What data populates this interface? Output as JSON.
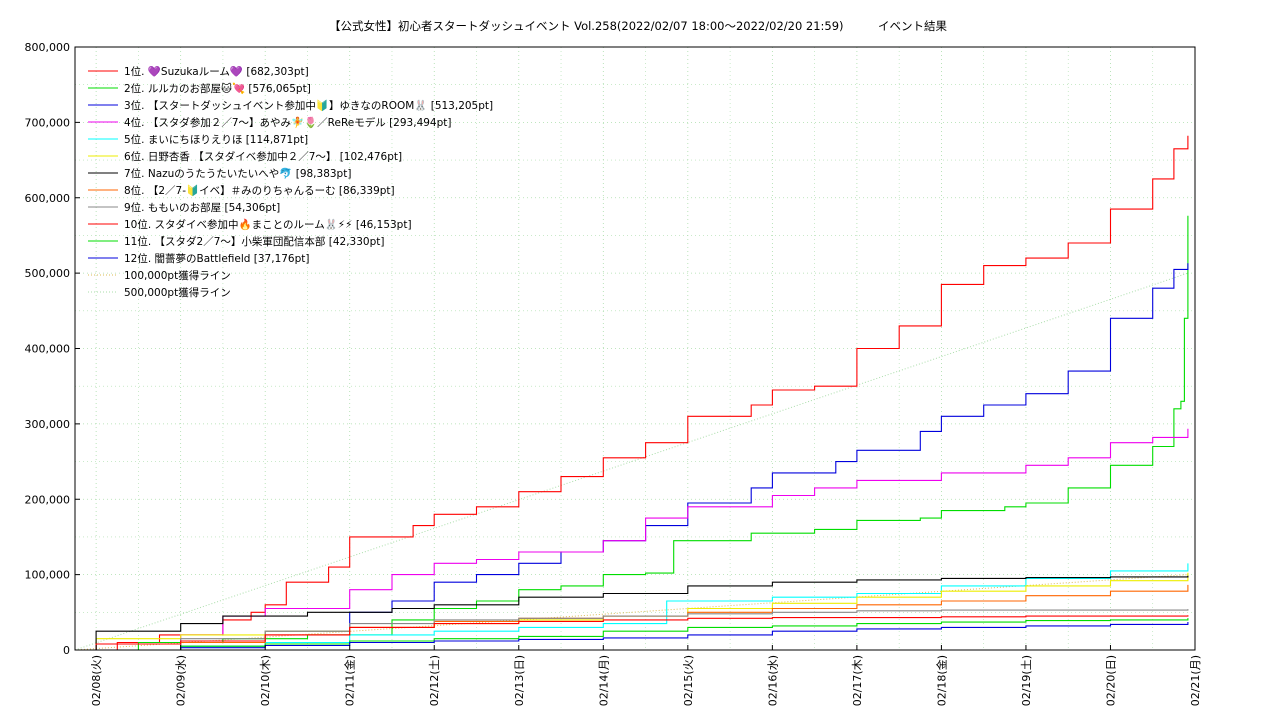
{
  "chart_data": {
    "type": "line",
    "title": "【公式女性】初心者スタートダッシュイベント Vol.258(2022/02/07 18:00～2022/02/20 21:59)　　　イベント結果",
    "xlabel": "",
    "ylabel": "",
    "x_tick_labels": [
      "02/08(火)",
      "02/09(水)",
      "02/10(木)",
      "02/11(金)",
      "02/12(土)",
      "02/13(日)",
      "02/14(月)",
      "02/15(火)",
      "02/16(水)",
      "02/17(木)",
      "02/18(金)",
      "02/19(土)",
      "02/20(日)",
      "02/21(月)"
    ],
    "y_tick_labels": [
      "0",
      "100,000",
      "200,000",
      "300,000",
      "400,000",
      "500,000",
      "600,000",
      "700,000",
      "800,000"
    ],
    "ylim": [
      0,
      800000
    ],
    "xlim": [
      "2022-02-07 18:00",
      "2022-02-21 00:00"
    ],
    "grid": true,
    "legend_position": "top-left",
    "series": [
      {
        "name": "1位. 💜Suzukaルーム💜 [682,303pt]",
        "color": "#ff0000",
        "points": [
          [
            "2022-02-07 18:00",
            0
          ],
          [
            "2022-02-08 06:00",
            10000
          ],
          [
            "2022-02-08 18:00",
            20000
          ],
          [
            "2022-02-09 12:00",
            40000
          ],
          [
            "2022-02-09 20:00",
            50000
          ],
          [
            "2022-02-10 00:00",
            60000
          ],
          [
            "2022-02-10 06:00",
            90000
          ],
          [
            "2022-02-10 18:00",
            110000
          ],
          [
            "2022-02-11 00:00",
            150000
          ],
          [
            "2022-02-11 18:00",
            165000
          ],
          [
            "2022-02-12 00:00",
            180000
          ],
          [
            "2022-02-12 12:00",
            190000
          ],
          [
            "2022-02-13 00:00",
            210000
          ],
          [
            "2022-02-13 12:00",
            230000
          ],
          [
            "2022-02-14 00:00",
            255000
          ],
          [
            "2022-02-14 12:00",
            275000
          ],
          [
            "2022-02-15 00:00",
            310000
          ],
          [
            "2022-02-15 18:00",
            325000
          ],
          [
            "2022-02-16 00:00",
            345000
          ],
          [
            "2022-02-16 12:00",
            350000
          ],
          [
            "2022-02-17 00:00",
            400000
          ],
          [
            "2022-02-17 12:00",
            430000
          ],
          [
            "2022-02-18 00:00",
            485000
          ],
          [
            "2022-02-18 12:00",
            510000
          ],
          [
            "2022-02-19 00:00",
            520000
          ],
          [
            "2022-02-19 12:00",
            540000
          ],
          [
            "2022-02-20 00:00",
            585000
          ],
          [
            "2022-02-20 12:00",
            625000
          ],
          [
            "2022-02-20 18:00",
            665000
          ],
          [
            "2022-02-20 21:59",
            682303
          ]
        ]
      },
      {
        "name": "2位. ルルカのお部屋🐱💘 [576,065pt]",
        "color": "#00dd00",
        "points": [
          [
            "2022-02-07 18:00",
            0
          ],
          [
            "2022-02-08 12:00",
            10000
          ],
          [
            "2022-02-09 12:00",
            15000
          ],
          [
            "2022-02-10 12:00",
            20000
          ],
          [
            "2022-02-11 12:00",
            40000
          ],
          [
            "2022-02-12 00:00",
            55000
          ],
          [
            "2022-02-12 12:00",
            65000
          ],
          [
            "2022-02-13 00:00",
            80000
          ],
          [
            "2022-02-13 12:00",
            85000
          ],
          [
            "2022-02-14 00:00",
            100000
          ],
          [
            "2022-02-14 12:00",
            102000
          ],
          [
            "2022-02-14 20:00",
            145000
          ],
          [
            "2022-02-15 18:00",
            155000
          ],
          [
            "2022-02-16 12:00",
            160000
          ],
          [
            "2022-02-17 00:00",
            172000
          ],
          [
            "2022-02-17 18:00",
            175000
          ],
          [
            "2022-02-18 00:00",
            185000
          ],
          [
            "2022-02-18 18:00",
            190000
          ],
          [
            "2022-02-19 00:00",
            195000
          ],
          [
            "2022-02-19 12:00",
            215000
          ],
          [
            "2022-02-20 00:00",
            245000
          ],
          [
            "2022-02-20 12:00",
            270000
          ],
          [
            "2022-02-20 18:00",
            320000
          ],
          [
            "2022-02-20 20:00",
            330000
          ],
          [
            "2022-02-20 21:00",
            440000
          ],
          [
            "2022-02-20 21:59",
            576065
          ]
        ]
      },
      {
        "name": "3位. 【スタートダッシュイベント参加中🔰】ゆきなのROOM🐰 [513,205pt]",
        "color": "#0000dd",
        "points": [
          [
            "2022-02-07 18:00",
            0
          ],
          [
            "2022-02-09 00:00",
            5000
          ],
          [
            "2022-02-10 00:00",
            25000
          ],
          [
            "2022-02-11 00:00",
            50000
          ],
          [
            "2022-02-11 12:00",
            65000
          ],
          [
            "2022-02-12 00:00",
            90000
          ],
          [
            "2022-02-12 12:00",
            100000
          ],
          [
            "2022-02-13 00:00",
            115000
          ],
          [
            "2022-02-13 12:00",
            130000
          ],
          [
            "2022-02-14 00:00",
            145000
          ],
          [
            "2022-02-14 12:00",
            165000
          ],
          [
            "2022-02-15 00:00",
            195000
          ],
          [
            "2022-02-15 18:00",
            215000
          ],
          [
            "2022-02-16 00:00",
            235000
          ],
          [
            "2022-02-16 18:00",
            250000
          ],
          [
            "2022-02-17 00:00",
            265000
          ],
          [
            "2022-02-17 18:00",
            290000
          ],
          [
            "2022-02-18 00:00",
            310000
          ],
          [
            "2022-02-18 12:00",
            325000
          ],
          [
            "2022-02-19 00:00",
            340000
          ],
          [
            "2022-02-19 12:00",
            370000
          ],
          [
            "2022-02-20 00:00",
            440000
          ],
          [
            "2022-02-20 12:00",
            480000
          ],
          [
            "2022-02-20 18:00",
            505000
          ],
          [
            "2022-02-20 21:59",
            513205
          ]
        ]
      },
      {
        "name": "4位. 【スタダ参加２／7〜】あやみ🧚🌷／ReReモデル [293,494pt]",
        "color": "#ee00ee",
        "points": [
          [
            "2022-02-07 18:00",
            0
          ],
          [
            "2022-02-09 00:00",
            20000
          ],
          [
            "2022-02-09 12:00",
            45000
          ],
          [
            "2022-02-10 00:00",
            55000
          ],
          [
            "2022-02-11 00:00",
            80000
          ],
          [
            "2022-02-11 12:00",
            100000
          ],
          [
            "2022-02-12 00:00",
            115000
          ],
          [
            "2022-02-12 12:00",
            120000
          ],
          [
            "2022-02-13 00:00",
            130000
          ],
          [
            "2022-02-14 00:00",
            145000
          ],
          [
            "2022-02-14 12:00",
            175000
          ],
          [
            "2022-02-15 00:00",
            190000
          ],
          [
            "2022-02-16 00:00",
            205000
          ],
          [
            "2022-02-16 12:00",
            215000
          ],
          [
            "2022-02-17 00:00",
            225000
          ],
          [
            "2022-02-18 00:00",
            235000
          ],
          [
            "2022-02-19 00:00",
            245000
          ],
          [
            "2022-02-19 12:00",
            255000
          ],
          [
            "2022-02-20 00:00",
            275000
          ],
          [
            "2022-02-20 12:00",
            282000
          ],
          [
            "2022-02-20 21:59",
            293494
          ]
        ]
      },
      {
        "name": "5位. まいにちほりえりほ [114,871pt]",
        "color": "#00ffff",
        "points": [
          [
            "2022-02-07 18:00",
            0
          ],
          [
            "2022-02-09 00:00",
            5000
          ],
          [
            "2022-02-10 00:00",
            10000
          ],
          [
            "2022-02-11 00:00",
            20000
          ],
          [
            "2022-02-12 00:00",
            25000
          ],
          [
            "2022-02-13 00:00",
            30000
          ],
          [
            "2022-02-14 00:00",
            35000
          ],
          [
            "2022-02-14 18:00",
            65000
          ],
          [
            "2022-02-16 00:00",
            70000
          ],
          [
            "2022-02-17 00:00",
            75000
          ],
          [
            "2022-02-18 00:00",
            85000
          ],
          [
            "2022-02-19 00:00",
            95000
          ],
          [
            "2022-02-20 00:00",
            105000
          ],
          [
            "2022-02-20 21:59",
            114871
          ]
        ]
      },
      {
        "name": "6位. 日野杏香 【スタダイベ参加中２／7〜】 [102,476pt]",
        "color": "#eeee00",
        "points": [
          [
            "2022-02-07 18:00",
            0
          ],
          [
            "2022-02-08 00:00",
            15000
          ],
          [
            "2022-02-09 00:00",
            20000
          ],
          [
            "2022-02-10 00:00",
            25000
          ],
          [
            "2022-02-11 00:00",
            30000
          ],
          [
            "2022-02-12 00:00",
            35000
          ],
          [
            "2022-02-13 00:00",
            40000
          ],
          [
            "2022-02-14 00:00",
            45000
          ],
          [
            "2022-02-15 00:00",
            55000
          ],
          [
            "2022-02-16 00:00",
            62000
          ],
          [
            "2022-02-17 00:00",
            70000
          ],
          [
            "2022-02-18 00:00",
            78000
          ],
          [
            "2022-02-19 00:00",
            85000
          ],
          [
            "2022-02-20 00:00",
            92000
          ],
          [
            "2022-02-20 21:59",
            102476
          ]
        ]
      },
      {
        "name": "7位. Nazuのうたうたいたいへや🐬 [98,383pt]",
        "color": "#000000",
        "points": [
          [
            "2022-02-07 18:00",
            0
          ],
          [
            "2022-02-08 00:00",
            25000
          ],
          [
            "2022-02-09 00:00",
            35000
          ],
          [
            "2022-02-09 12:00",
            45000
          ],
          [
            "2022-02-10 12:00",
            50000
          ],
          [
            "2022-02-11 12:00",
            55000
          ],
          [
            "2022-02-12 00:00",
            60000
          ],
          [
            "2022-02-13 00:00",
            70000
          ],
          [
            "2022-02-14 00:00",
            75000
          ],
          [
            "2022-02-15 00:00",
            85000
          ],
          [
            "2022-02-16 00:00",
            90000
          ],
          [
            "2022-02-17 00:00",
            93000
          ],
          [
            "2022-02-18 00:00",
            95000
          ],
          [
            "2022-02-19 00:00",
            96000
          ],
          [
            "2022-02-20 00:00",
            97000
          ],
          [
            "2022-02-20 21:59",
            98383
          ]
        ]
      },
      {
        "name": "8位. 【2／7-🔰イベ】＃みのりちゃんるーむ [86,339pt]",
        "color": "#ff6600",
        "points": [
          [
            "2022-02-07 18:00",
            0
          ],
          [
            "2022-02-09 00:00",
            10000
          ],
          [
            "2022-02-10 00:00",
            20000
          ],
          [
            "2022-02-11 00:00",
            30000
          ],
          [
            "2022-02-12 00:00",
            38000
          ],
          [
            "2022-02-13 00:00",
            42000
          ],
          [
            "2022-02-14 00:00",
            45000
          ],
          [
            "2022-02-15 00:00",
            50000
          ],
          [
            "2022-02-16 00:00",
            55000
          ],
          [
            "2022-02-17 00:00",
            60000
          ],
          [
            "2022-02-18 00:00",
            65000
          ],
          [
            "2022-02-19 00:00",
            72000
          ],
          [
            "2022-02-20 00:00",
            78000
          ],
          [
            "2022-02-20 21:59",
            86339
          ]
        ]
      },
      {
        "name": "9位. ももいのお部屋 [54,306pt]",
        "color": "#888888",
        "points": [
          [
            "2022-02-07 18:00",
            0
          ],
          [
            "2022-02-09 00:00",
            15000
          ],
          [
            "2022-02-10 00:00",
            25000
          ],
          [
            "2022-02-11 00:00",
            35000
          ],
          [
            "2022-02-12 00:00",
            40000
          ],
          [
            "2022-02-13 00:00",
            42000
          ],
          [
            "2022-02-14 00:00",
            45000
          ],
          [
            "2022-02-15 00:00",
            48000
          ],
          [
            "2022-02-16 00:00",
            50000
          ],
          [
            "2022-02-17 00:00",
            52000
          ],
          [
            "2022-02-18 00:00",
            53000
          ],
          [
            "2022-02-20 21:59",
            54306
          ]
        ]
      },
      {
        "name": "10位. スタダイベ参加中🔥まことのルーム🐰⚡⚡ [46,153pt]",
        "color": "#ff0000",
        "points": [
          [
            "2022-02-07 18:00",
            0
          ],
          [
            "2022-02-08 00:00",
            8000
          ],
          [
            "2022-02-09 00:00",
            12000
          ],
          [
            "2022-02-10 00:00",
            20000
          ],
          [
            "2022-02-11 00:00",
            30000
          ],
          [
            "2022-02-12 00:00",
            35000
          ],
          [
            "2022-02-13 00:00",
            38000
          ],
          [
            "2022-02-14 00:00",
            40000
          ],
          [
            "2022-02-15 00:00",
            42000
          ],
          [
            "2022-02-16 00:00",
            43000
          ],
          [
            "2022-02-18 00:00",
            44000
          ],
          [
            "2022-02-19 00:00",
            45000
          ],
          [
            "2022-02-20 21:59",
            46153
          ]
        ]
      },
      {
        "name": "11位. 【スタダ2／7〜】小柴軍団配信本部 [42,330pt]",
        "color": "#00dd00",
        "points": [
          [
            "2022-02-07 18:00",
            0
          ],
          [
            "2022-02-09 00:00",
            5000
          ],
          [
            "2022-02-10 00:00",
            8000
          ],
          [
            "2022-02-11 00:00",
            12000
          ],
          [
            "2022-02-12 00:00",
            15000
          ],
          [
            "2022-02-13 00:00",
            18000
          ],
          [
            "2022-02-14 00:00",
            25000
          ],
          [
            "2022-02-15 00:00",
            30000
          ],
          [
            "2022-02-16 00:00",
            32000
          ],
          [
            "2022-02-17 00:00",
            35000
          ],
          [
            "2022-02-18 00:00",
            37000
          ],
          [
            "2022-02-19 00:00",
            39000
          ],
          [
            "2022-02-20 00:00",
            40000
          ],
          [
            "2022-02-20 21:59",
            42330
          ]
        ]
      },
      {
        "name": "12位. 闇薔夢のBattlefield [37,176pt]",
        "color": "#0000dd",
        "points": [
          [
            "2022-02-07 18:00",
            0
          ],
          [
            "2022-02-09 00:00",
            3000
          ],
          [
            "2022-02-10 00:00",
            6000
          ],
          [
            "2022-02-11 00:00",
            10000
          ],
          [
            "2022-02-12 00:00",
            12000
          ],
          [
            "2022-02-13 00:00",
            14000
          ],
          [
            "2022-02-14 00:00",
            16000
          ],
          [
            "2022-02-15 00:00",
            20000
          ],
          [
            "2022-02-16 00:00",
            25000
          ],
          [
            "2022-02-17 00:00",
            28000
          ],
          [
            "2022-02-18 00:00",
            30000
          ],
          [
            "2022-02-19 00:00",
            32000
          ],
          [
            "2022-02-20 00:00",
            34000
          ],
          [
            "2022-02-20 21:59",
            37176
          ]
        ]
      }
    ],
    "reference_lines": [
      {
        "name": "100,000pt獲得ライン",
        "color": "#ddbb55",
        "points": [
          [
            "2022-02-07 18:00",
            0
          ],
          [
            "2022-02-20 21:59",
            100000
          ]
        ]
      },
      {
        "name": "500,000pt獲得ライン",
        "color": "#aaddaa",
        "points": [
          [
            "2022-02-07 18:00",
            0
          ],
          [
            "2022-02-20 21:59",
            500000
          ]
        ]
      }
    ]
  }
}
